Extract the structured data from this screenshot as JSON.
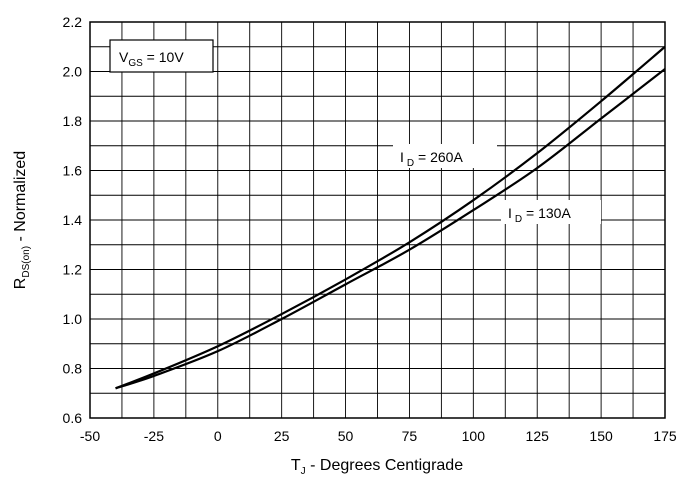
{
  "chart_data": {
    "type": "line",
    "xlabel": {
      "main": "T",
      "sub": "J",
      "rest": " - Degrees Centigrade"
    },
    "ylabel": {
      "main": "R",
      "sub": "DS(on)",
      "rest": " - Normalized"
    },
    "xlim": [
      -50,
      175
    ],
    "ylim": [
      0.6,
      2.2
    ],
    "x_major_ticks": [
      -50,
      -25,
      0,
      25,
      50,
      75,
      100,
      125,
      150,
      175
    ],
    "x_tick_labels": [
      "-50",
      "-25",
      "0",
      "25",
      "50",
      "75",
      "100",
      "125",
      "150",
      "175"
    ],
    "y_major_ticks": [
      0.6,
      0.8,
      1.0,
      1.2,
      1.4,
      1.6,
      1.8,
      2.0,
      2.2
    ],
    "y_tick_labels": [
      "0.6",
      "0.8",
      "1.0",
      "1.2",
      "1.4",
      "1.6",
      "1.8",
      "2.0",
      "2.2"
    ],
    "grid": true,
    "condition_box": {
      "main": "V",
      "sub": "GS",
      "rest": " = 10V"
    },
    "series": [
      {
        "label": {
          "main": "I",
          "sub": "D",
          "rest": " = 260A"
        },
        "x": [
          -40,
          -25,
          0,
          25,
          50,
          75,
          100,
          125,
          150,
          175
        ],
        "y": [
          0.72,
          0.78,
          0.89,
          1.02,
          1.16,
          1.31,
          1.48,
          1.67,
          1.88,
          2.1
        ]
      },
      {
        "label": {
          "main": "I",
          "sub": "D",
          "rest": " = 130A"
        },
        "x": [
          -40,
          -25,
          0,
          25,
          50,
          75,
          100,
          125,
          150,
          175
        ],
        "y": [
          0.72,
          0.77,
          0.87,
          1.0,
          1.14,
          1.28,
          1.44,
          1.61,
          1.81,
          2.01
        ]
      }
    ]
  }
}
